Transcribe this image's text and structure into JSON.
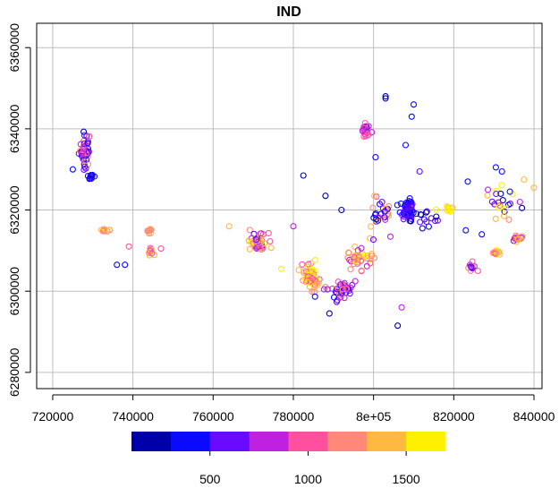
{
  "chart_data": {
    "type": "scatter",
    "title": "IND",
    "xlabel": "",
    "ylabel": "",
    "xlim": [
      716000,
      842000
    ],
    "ylim": [
      6276000,
      6366000
    ],
    "x_ticks": [
      720000,
      740000,
      760000,
      780000,
      800000,
      820000,
      840000
    ],
    "x_tick_labels": [
      "720000",
      "740000",
      "760000",
      "780000",
      "8e+05",
      "820000",
      "840000"
    ],
    "y_ticks": [
      6280000,
      6300000,
      6320000,
      6340000,
      6360000
    ],
    "y_tick_labels": [
      "6280000",
      "6300000",
      "6320000",
      "6340000",
      "6360000"
    ],
    "grid": true,
    "color_key": {
      "colors": [
        "#0000AA",
        "#0A0AFF",
        "#6A0AFF",
        "#C020E0",
        "#FF50A0",
        "#FF8878",
        "#FFB840",
        "#FFF000"
      ],
      "breaks": [
        100,
        300,
        500,
        700,
        900,
        1100,
        1300,
        1500,
        1700
      ],
      "tick_values": [
        500,
        1000,
        1500
      ],
      "tick_labels": [
        "500",
        "1000",
        "1500"
      ],
      "placement": "bottom"
    },
    "clusters": [
      {
        "cx": 728000,
        "cy": 6335000,
        "sx": 1200,
        "sy": 3500,
        "n": 45,
        "vmin": 200,
        "vmax": 1300
      },
      {
        "cx": 729500,
        "cy": 6328000,
        "sx": 800,
        "sy": 600,
        "n": 12,
        "vmin": 200,
        "vmax": 600
      },
      {
        "cx": 733000,
        "cy": 6315000,
        "sx": 800,
        "sy": 800,
        "n": 10,
        "vmin": 1100,
        "vmax": 1600
      },
      {
        "cx": 744000,
        "cy": 6314500,
        "sx": 700,
        "sy": 700,
        "n": 8,
        "vmin": 1100,
        "vmax": 1600
      },
      {
        "cx": 744500,
        "cy": 6310000,
        "sx": 700,
        "sy": 800,
        "n": 10,
        "vmin": 900,
        "vmax": 1400
      },
      {
        "cx": 771000,
        "cy": 6312000,
        "sx": 2000,
        "sy": 2000,
        "n": 55,
        "vmin": 500,
        "vmax": 1700
      },
      {
        "cx": 784500,
        "cy": 6303500,
        "sx": 1500,
        "sy": 2500,
        "n": 60,
        "vmin": 900,
        "vmax": 1700
      },
      {
        "cx": 791500,
        "cy": 6300500,
        "sx": 3000,
        "sy": 2000,
        "n": 45,
        "vmin": 300,
        "vmax": 1300
      },
      {
        "cx": 796000,
        "cy": 6307500,
        "sx": 3000,
        "sy": 3000,
        "n": 40,
        "vmin": 700,
        "vmax": 1700
      },
      {
        "cx": 798000,
        "cy": 6339500,
        "sx": 800,
        "sy": 1500,
        "n": 20,
        "vmin": 600,
        "vmax": 1100
      },
      {
        "cx": 801000,
        "cy": 6319000,
        "sx": 3000,
        "sy": 3500,
        "n": 30,
        "vmin": 200,
        "vmax": 1600
      },
      {
        "cx": 808500,
        "cy": 6320000,
        "sx": 1500,
        "sy": 2000,
        "n": 60,
        "vmin": 300,
        "vmax": 700
      },
      {
        "cx": 813000,
        "cy": 6318000,
        "sx": 3000,
        "sy": 2000,
        "n": 15,
        "vmin": 200,
        "vmax": 700
      },
      {
        "cx": 818500,
        "cy": 6320500,
        "sx": 1200,
        "sy": 800,
        "n": 12,
        "vmin": 1300,
        "vmax": 1700
      },
      {
        "cx": 824500,
        "cy": 6306000,
        "sx": 800,
        "sy": 700,
        "n": 12,
        "vmin": 500,
        "vmax": 1300
      },
      {
        "cx": 830500,
        "cy": 6309500,
        "sx": 1000,
        "sy": 700,
        "n": 15,
        "vmin": 1000,
        "vmax": 1700
      },
      {
        "cx": 835500,
        "cy": 6313000,
        "sx": 1000,
        "sy": 800,
        "n": 15,
        "vmin": 500,
        "vmax": 1600
      },
      {
        "cx": 831000,
        "cy": 6322000,
        "sx": 4000,
        "sy": 3500,
        "n": 18,
        "vmin": 100,
        "vmax": 1700
      }
    ],
    "points": [
      {
        "x": 725000,
        "y": 6330000,
        "v": 300
      },
      {
        "x": 736000,
        "y": 6306500,
        "v": 300
      },
      {
        "x": 738000,
        "y": 6306500,
        "v": 400
      },
      {
        "x": 739000,
        "y": 6311000,
        "v": 1000
      },
      {
        "x": 747000,
        "y": 6310500,
        "v": 1000
      },
      {
        "x": 764000,
        "y": 6316000,
        "v": 1400
      },
      {
        "x": 777000,
        "y": 6305500,
        "v": 1500
      },
      {
        "x": 780000,
        "y": 6316000,
        "v": 700
      },
      {
        "x": 782500,
        "y": 6328500,
        "v": 200
      },
      {
        "x": 788000,
        "y": 6323500,
        "v": 200
      },
      {
        "x": 789000,
        "y": 6294500,
        "v": 200
      },
      {
        "x": 792000,
        "y": 6320000,
        "v": 200
      },
      {
        "x": 800500,
        "y": 6333000,
        "v": 400
      },
      {
        "x": 803000,
        "y": 6347500,
        "v": 200
      },
      {
        "x": 803000,
        "y": 6348000,
        "v": 200
      },
      {
        "x": 806000,
        "y": 6291500,
        "v": 200
      },
      {
        "x": 807000,
        "y": 6296000,
        "v": 800
      },
      {
        "x": 808000,
        "y": 6336000,
        "v": 300
      },
      {
        "x": 809500,
        "y": 6343000,
        "v": 300
      },
      {
        "x": 810000,
        "y": 6346000,
        "v": 300
      },
      {
        "x": 811500,
        "y": 6329500,
        "v": 600
      },
      {
        "x": 823500,
        "y": 6327000,
        "v": 300
      },
      {
        "x": 823000,
        "y": 6315000,
        "v": 300
      },
      {
        "x": 827000,
        "y": 6314000,
        "v": 300
      },
      {
        "x": 828500,
        "y": 6325000,
        "v": 800
      },
      {
        "x": 830500,
        "y": 6330500,
        "v": 400
      },
      {
        "x": 832000,
        "y": 6329500,
        "v": 300
      },
      {
        "x": 832500,
        "y": 6318500,
        "v": 1300
      },
      {
        "x": 834000,
        "y": 6324500,
        "v": 300
      },
      {
        "x": 836500,
        "y": 6322000,
        "v": 700
      },
      {
        "x": 837500,
        "y": 6327500,
        "v": 1300
      },
      {
        "x": 840000,
        "y": 6325500,
        "v": 1300
      },
      {
        "x": 837000,
        "y": 6320500,
        "v": 200
      },
      {
        "x": 826000,
        "y": 6305000,
        "v": 900
      }
    ]
  }
}
